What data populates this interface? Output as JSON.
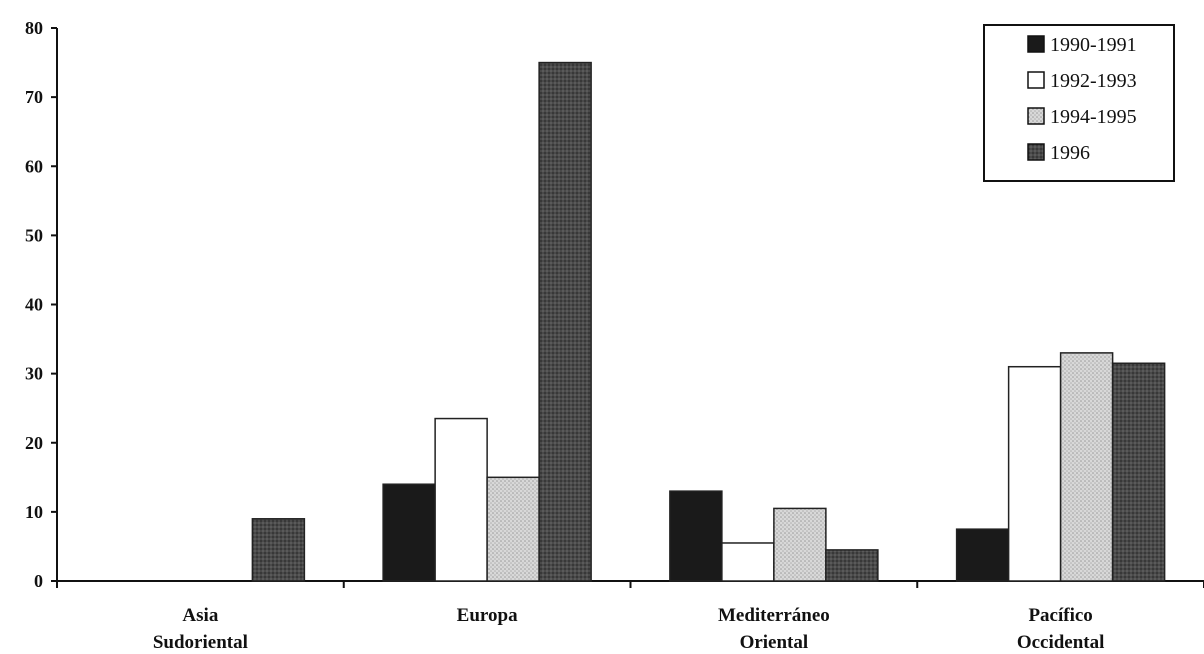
{
  "chart_data": {
    "type": "bar",
    "categories": [
      [
        "Asia",
        "Sudoriental"
      ],
      [
        "Europa"
      ],
      [
        "Mediterráneo",
        "Oriental"
      ],
      [
        "Pacífico",
        "Occidental"
      ]
    ],
    "series": [
      {
        "name": "1990-1991",
        "values": [
          0,
          14,
          13,
          7.5
        ],
        "color": "#1a1a1a"
      },
      {
        "name": "1992-1993",
        "values": [
          0,
          23.5,
          5.5,
          31
        ],
        "color": "#ffffff"
      },
      {
        "name": "1994-1995",
        "values": [
          0,
          15,
          10.5,
          33
        ],
        "color": "#d2d2d2"
      },
      {
        "name": "1996",
        "values": [
          9,
          75,
          4.5,
          31.5
        ],
        "color": "#4a4a4a"
      }
    ],
    "ylim": [
      0,
      80
    ],
    "yticks": [
      0,
      10,
      20,
      30,
      40,
      50,
      60,
      70,
      80
    ],
    "grid": false,
    "legend_position": "top-right"
  }
}
